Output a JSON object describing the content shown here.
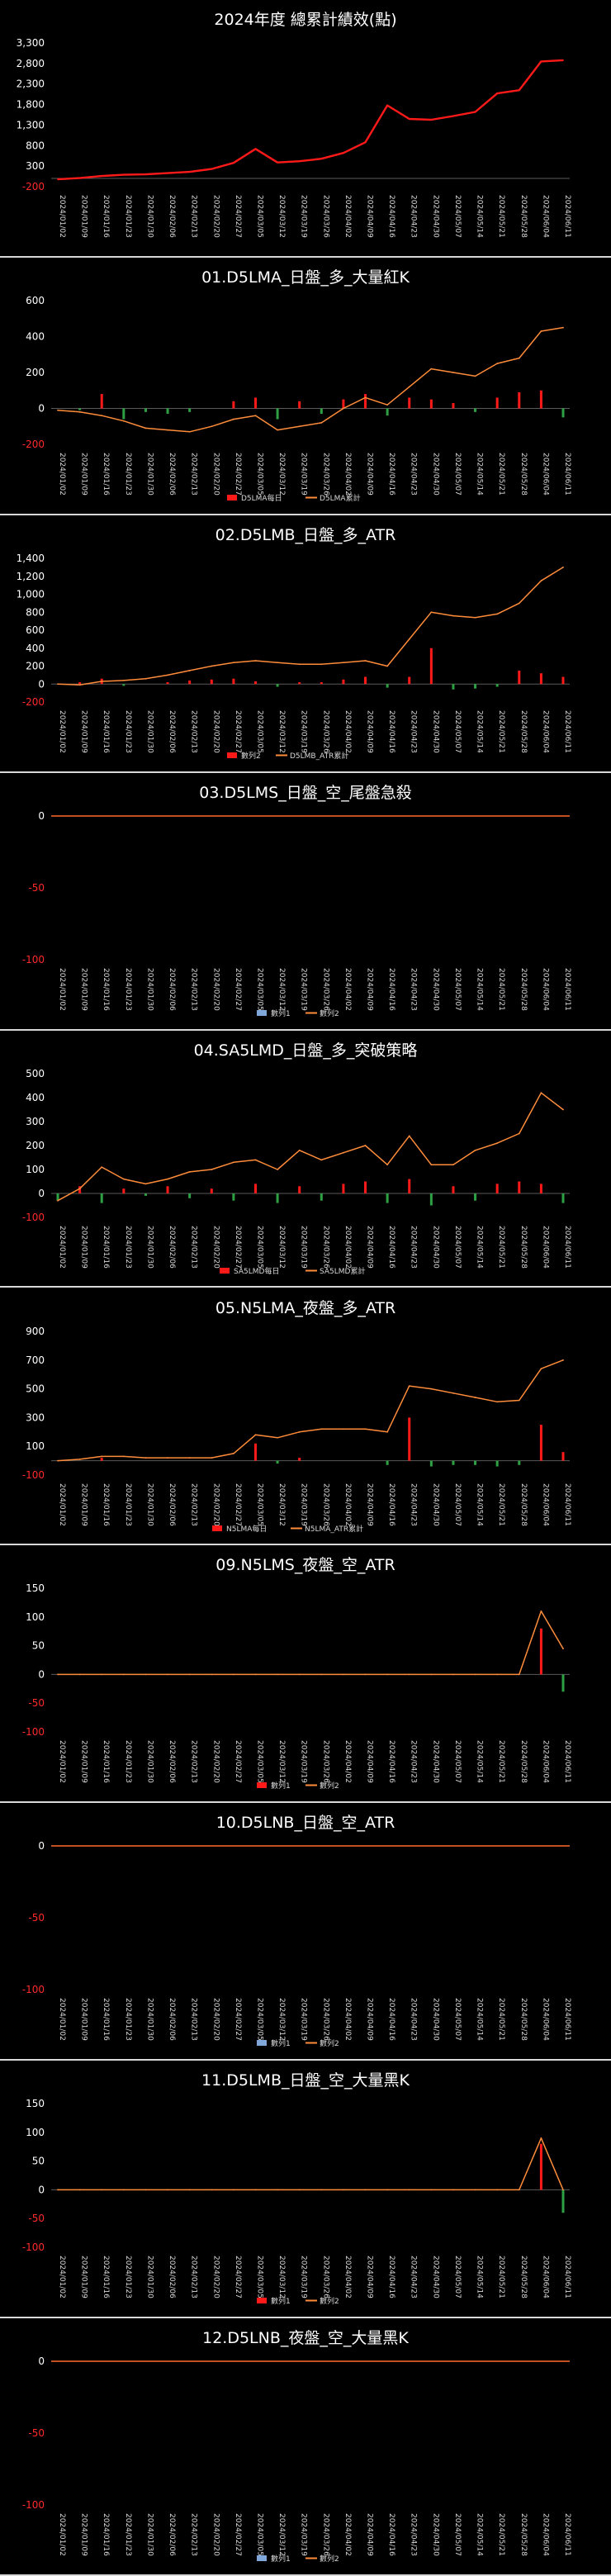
{
  "colors": {
    "background": "#000000",
    "cumulative_main": "#ff1a1a",
    "cumulative": "#ff8c3a",
    "daily_pos": "#ff1a1a",
    "daily_neg": "#2ea043",
    "zero_line": "#ff6a2a",
    "blank_series": "#7fa7d9"
  },
  "chart_data": [
    {
      "type": "line",
      "title": "2024年度 總累計績效(點)",
      "x": [
        "2024/01/02",
        "2024/01/09",
        "2024/01/16",
        "2024/01/23",
        "2024/01/30",
        "2024/02/06",
        "2024/02/13",
        "2024/02/20",
        "2024/02/27",
        "2024/03/05",
        "2024/03/12",
        "2024/03/19",
        "2024/03/26",
        "2024/04/02",
        "2024/04/09",
        "2024/04/16",
        "2024/04/23",
        "2024/04/30",
        "2024/05/07",
        "2024/05/14",
        "2024/05/21",
        "2024/05/28",
        "2024/06/04",
        "2024/06/11"
      ],
      "yticks": [
        "3,300",
        "2,800",
        "2,300",
        "1,800",
        "1,300",
        "800",
        "300",
        "-200"
      ],
      "ylim": [
        -200,
        3300
      ],
      "series": [
        {
          "values": [
            -20,
            10,
            60,
            90,
            100,
            130,
            160,
            230,
            380,
            720,
            390,
            420,
            480,
            620,
            880,
            1780,
            1450,
            1430,
            1520,
            1620,
            2070,
            2150,
            2850,
            2880
          ]
        }
      ],
      "legend": []
    },
    {
      "type": "bar+line",
      "title": "01.D5LMA_日盤_多_大量紅K",
      "x": [
        "2024/01/02",
        "2024/01/09",
        "2024/01/16",
        "2024/01/23",
        "2024/01/30",
        "2024/02/06",
        "2024/02/13",
        "2024/02/20",
        "2024/02/27",
        "2024/03/05",
        "2024/03/12",
        "2024/03/19",
        "2024/03/26",
        "2024/04/02",
        "2024/04/09",
        "2024/04/16",
        "2024/04/23",
        "2024/04/30",
        "2024/05/07",
        "2024/05/14",
        "2024/05/21",
        "2024/05/28",
        "2024/06/04",
        "2024/06/11"
      ],
      "yticks": [
        "600",
        "400",
        "200",
        "0",
        "-200"
      ],
      "ylim": [
        -200,
        600
      ],
      "series": [
        {
          "name": "D5LMA每日",
          "kind": "bar",
          "values": [
            0,
            -10,
            80,
            -60,
            -20,
            -30,
            -20,
            0,
            40,
            60,
            -60,
            40,
            -30,
            50,
            80,
            -40,
            60,
            50,
            30,
            -20,
            60,
            90,
            100,
            -50
          ]
        },
        {
          "name": "D5LMA累計",
          "kind": "line",
          "values": [
            -10,
            -20,
            -40,
            -70,
            -110,
            -120,
            -130,
            -100,
            -60,
            -40,
            -120,
            -100,
            -80,
            0,
            60,
            20,
            120,
            220,
            200,
            180,
            250,
            280,
            430,
            450
          ]
        }
      ],
      "legend": [
        "D5LMA每日",
        "D5LMA累計"
      ]
    },
    {
      "type": "bar+line",
      "title": "02.D5LMB_日盤_多_ATR",
      "x": [
        "2024/01/02",
        "2024/01/09",
        "2024/01/16",
        "2024/01/23",
        "2024/01/30",
        "2024/02/06",
        "2024/02/13",
        "2024/02/20",
        "2024/02/27",
        "2024/03/05",
        "2024/03/12",
        "2024/03/19",
        "2024/03/26",
        "2024/04/02",
        "2024/04/09",
        "2024/04/16",
        "2024/04/23",
        "2024/04/30",
        "2024/05/07",
        "2024/05/14",
        "2024/05/21",
        "2024/05/28",
        "2024/06/04",
        "2024/06/11"
      ],
      "yticks": [
        "1,400",
        "1,200",
        "1,000",
        "800",
        "600",
        "400",
        "200",
        "0",
        "-200"
      ],
      "ylim": [
        -200,
        1400
      ],
      "series": [
        {
          "name": "數列2",
          "kind": "bar",
          "values": [
            0,
            20,
            60,
            -20,
            0,
            20,
            40,
            50,
            60,
            30,
            -30,
            20,
            20,
            50,
            80,
            -40,
            80,
            400,
            -60,
            -50,
            -30,
            150,
            120,
            80
          ]
        },
        {
          "name": "D5LMB_ATR累計",
          "kind": "line",
          "values": [
            0,
            -10,
            30,
            40,
            60,
            100,
            150,
            200,
            240,
            260,
            240,
            220,
            220,
            240,
            260,
            200,
            500,
            800,
            760,
            740,
            780,
            900,
            1150,
            1300
          ]
        }
      ],
      "legend": [
        "數列2",
        "D5LMB_ATR累計"
      ]
    },
    {
      "type": "bar+line",
      "title": "03.D5LMS_日盤_空_尾盤急殺",
      "x": [
        "2024/01/02",
        "2024/01/09",
        "2024/01/16",
        "2024/01/23",
        "2024/01/30",
        "2024/02/06",
        "2024/02/13",
        "2024/02/20",
        "2024/02/27",
        "2024/03/05",
        "2024/03/12",
        "2024/03/19",
        "2024/03/26",
        "2024/04/02",
        "2024/04/09",
        "2024/04/16",
        "2024/04/23",
        "2024/04/30",
        "2024/05/07",
        "2024/05/14",
        "2024/05/21",
        "2024/05/28",
        "2024/06/04",
        "2024/06/11"
      ],
      "yticks": [
        "0",
        "-50",
        "-100"
      ],
      "ylim": [
        -100,
        0
      ],
      "series": [
        {
          "name": "數列1",
          "kind": "bar",
          "values": [
            0,
            0,
            0,
            0,
            0,
            0,
            0,
            0,
            0,
            0,
            0,
            0,
            0,
            0,
            0,
            0,
            0,
            0,
            0,
            0,
            0,
            0,
            0,
            0
          ]
        },
        {
          "name": "數列2",
          "kind": "line",
          "values": [
            0,
            0,
            0,
            0,
            0,
            0,
            0,
            0,
            0,
            0,
            0,
            0,
            0,
            0,
            0,
            0,
            0,
            0,
            0,
            0,
            0,
            0,
            0,
            0
          ]
        }
      ],
      "legend": [
        "數列1",
        "數列2"
      ]
    },
    {
      "type": "bar+line",
      "title": "04.SA5LMD_日盤_多_突破策略",
      "x": [
        "2024/01/02",
        "2024/01/09",
        "2024/01/16",
        "2024/01/23",
        "2024/01/30",
        "2024/02/06",
        "2024/02/13",
        "2024/02/20",
        "2024/02/27",
        "2024/03/05",
        "2024/03/12",
        "2024/03/19",
        "2024/03/26",
        "2024/04/02",
        "2024/04/09",
        "2024/04/16",
        "2024/04/23",
        "2024/04/30",
        "2024/05/07",
        "2024/05/14",
        "2024/05/21",
        "2024/05/28",
        "2024/06/04",
        "2024/06/11"
      ],
      "yticks": [
        "500",
        "400",
        "300",
        "200",
        "100",
        "0",
        "-100"
      ],
      "ylim": [
        -100,
        500
      ],
      "series": [
        {
          "name": "SA5LMD每日",
          "kind": "bar",
          "values": [
            -30,
            30,
            -40,
            20,
            -10,
            30,
            -20,
            20,
            -30,
            40,
            -40,
            30,
            -30,
            40,
            50,
            -40,
            60,
            -50,
            30,
            -30,
            40,
            50,
            40,
            -40
          ]
        },
        {
          "name": "SA5LMD累計",
          "kind": "line",
          "values": [
            -30,
            20,
            110,
            60,
            40,
            60,
            90,
            100,
            130,
            140,
            100,
            180,
            140,
            170,
            200,
            120,
            240,
            120,
            120,
            180,
            210,
            250,
            420,
            350
          ]
        }
      ],
      "legend": [
        "SA5LMD每日",
        "SA5LMD累計"
      ]
    },
    {
      "type": "bar+line",
      "title": "05.N5LMA_夜盤_多_ATR",
      "x": [
        "2024/01/02",
        "2024/01/09",
        "2024/01/16",
        "2024/01/23",
        "2024/01/30",
        "2024/02/06",
        "2024/02/13",
        "2024/02/20",
        "2024/02/27",
        "2024/03/05",
        "2024/03/12",
        "2024/03/19",
        "2024/03/26",
        "2024/04/02",
        "2024/04/09",
        "2024/04/16",
        "2024/04/23",
        "2024/04/30",
        "2024/05/07",
        "2024/05/14",
        "2024/05/21",
        "2024/05/28",
        "2024/06/04",
        "2024/06/11"
      ],
      "yticks": [
        "900",
        "700",
        "500",
        "300",
        "100",
        "-100"
      ],
      "ylim": [
        -100,
        900
      ],
      "series": [
        {
          "name": "N5LMA每日",
          "kind": "bar",
          "values": [
            0,
            0,
            20,
            0,
            0,
            0,
            0,
            0,
            0,
            120,
            -20,
            20,
            0,
            0,
            0,
            -30,
            300,
            -40,
            -30,
            -30,
            -40,
            -30,
            250,
            60
          ]
        },
        {
          "name": "N5LMA_ATR累計",
          "kind": "line",
          "values": [
            0,
            10,
            30,
            30,
            20,
            20,
            20,
            20,
            50,
            180,
            160,
            200,
            220,
            220,
            220,
            200,
            520,
            500,
            470,
            440,
            410,
            420,
            640,
            700
          ]
        }
      ],
      "legend": [
        "N5LMA每日",
        "N5LMA_ATR累計"
      ]
    },
    {
      "type": "bar+line",
      "title": "09.N5LMS_夜盤_空_ATR",
      "x": [
        "2024/01/02",
        "2024/01/09",
        "2024/01/16",
        "2024/01/23",
        "2024/01/30",
        "2024/02/06",
        "2024/02/13",
        "2024/02/20",
        "2024/02/27",
        "2024/03/05",
        "2024/03/12",
        "2024/03/19",
        "2024/03/26",
        "2024/04/02",
        "2024/04/09",
        "2024/04/16",
        "2024/04/23",
        "2024/04/30",
        "2024/05/07",
        "2024/05/14",
        "2024/05/21",
        "2024/05/28",
        "2024/06/04",
        "2024/06/11"
      ],
      "yticks": [
        "150",
        "100",
        "50",
        "0",
        "-50",
        "-100"
      ],
      "ylim": [
        -100,
        150
      ],
      "series": [
        {
          "name": "數列1",
          "kind": "bar",
          "values": [
            0,
            0,
            0,
            0,
            0,
            0,
            0,
            0,
            0,
            0,
            0,
            0,
            0,
            0,
            0,
            0,
            0,
            0,
            0,
            0,
            0,
            0,
            80,
            -30
          ]
        },
        {
          "name": "數列2",
          "kind": "line",
          "values": [
            0,
            0,
            0,
            0,
            0,
            0,
            0,
            0,
            0,
            0,
            0,
            0,
            0,
            0,
            0,
            0,
            0,
            0,
            0,
            0,
            0,
            0,
            110,
            45
          ]
        }
      ],
      "legend": [
        "數列1",
        "數列2"
      ]
    },
    {
      "type": "bar+line",
      "title": "10.D5LNB_日盤_空_ATR",
      "x": [
        "2024/01/02",
        "2024/01/09",
        "2024/01/16",
        "2024/01/23",
        "2024/01/30",
        "2024/02/06",
        "2024/02/13",
        "2024/02/20",
        "2024/02/27",
        "2024/03/05",
        "2024/03/12",
        "2024/03/19",
        "2024/03/26",
        "2024/04/02",
        "2024/04/09",
        "2024/04/16",
        "2024/04/23",
        "2024/04/30",
        "2024/05/07",
        "2024/05/14",
        "2024/05/21",
        "2024/05/28",
        "2024/06/04",
        "2024/06/11"
      ],
      "yticks": [
        "0",
        "-50",
        "-100"
      ],
      "ylim": [
        -100,
        0
      ],
      "series": [
        {
          "name": "數列1",
          "kind": "bar",
          "values": [
            0,
            0,
            0,
            0,
            0,
            0,
            0,
            0,
            0,
            0,
            0,
            0,
            0,
            0,
            0,
            0,
            0,
            0,
            0,
            0,
            0,
            0,
            0,
            0
          ]
        },
        {
          "name": "數列2",
          "kind": "line",
          "values": [
            0,
            0,
            0,
            0,
            0,
            0,
            0,
            0,
            0,
            0,
            0,
            0,
            0,
            0,
            0,
            0,
            0,
            0,
            0,
            0,
            0,
            0,
            0,
            0
          ]
        }
      ],
      "legend": [
        "數列1",
        "數列2"
      ]
    },
    {
      "type": "bar+line",
      "title": "11.D5LMB_日盤_空_大量黑K",
      "x": [
        "2024/01/02",
        "2024/01/09",
        "2024/01/16",
        "2024/01/23",
        "2024/01/30",
        "2024/02/06",
        "2024/02/13",
        "2024/02/20",
        "2024/02/27",
        "2024/03/05",
        "2024/03/12",
        "2024/03/19",
        "2024/03/26",
        "2024/04/02",
        "2024/04/09",
        "2024/04/16",
        "2024/04/23",
        "2024/04/30",
        "2024/05/07",
        "2024/05/14",
        "2024/05/21",
        "2024/05/28",
        "2024/06/04",
        "2024/06/11"
      ],
      "yticks": [
        "150",
        "100",
        "50",
        "0",
        "-50",
        "-100"
      ],
      "ylim": [
        -100,
        150
      ],
      "series": [
        {
          "name": "數列1",
          "kind": "bar",
          "values": [
            0,
            0,
            0,
            0,
            0,
            0,
            0,
            0,
            0,
            0,
            0,
            0,
            0,
            0,
            0,
            0,
            0,
            0,
            0,
            0,
            0,
            0,
            80,
            -40
          ]
        },
        {
          "name": "數列2",
          "kind": "line",
          "values": [
            0,
            0,
            0,
            0,
            0,
            0,
            0,
            0,
            0,
            0,
            0,
            0,
            0,
            0,
            0,
            0,
            0,
            0,
            0,
            0,
            0,
            0,
            90,
            0
          ]
        }
      ],
      "legend": [
        "數列1",
        "數列2"
      ]
    },
    {
      "type": "bar+line",
      "title": "12.D5LNB_夜盤_空_大量黑K",
      "x": [
        "2024/01/02",
        "2024/01/09",
        "2024/01/16",
        "2024/01/23",
        "2024/01/30",
        "2024/02/06",
        "2024/02/13",
        "2024/02/20",
        "2024/02/27",
        "2024/03/05",
        "2024/03/12",
        "2024/03/19",
        "2024/03/26",
        "2024/04/02",
        "2024/04/09",
        "2024/04/16",
        "2024/04/23",
        "2024/04/30",
        "2024/05/07",
        "2024/05/14",
        "2024/05/21",
        "2024/05/28",
        "2024/06/04",
        "2024/06/11"
      ],
      "yticks": [
        "0",
        "-50",
        "-100"
      ],
      "ylim": [
        -100,
        0
      ],
      "series": [
        {
          "name": "數列1",
          "kind": "bar",
          "values": [
            0,
            0,
            0,
            0,
            0,
            0,
            0,
            0,
            0,
            0,
            0,
            0,
            0,
            0,
            0,
            0,
            0,
            0,
            0,
            0,
            0,
            0,
            0,
            0
          ]
        },
        {
          "name": "數列2",
          "kind": "line",
          "values": [
            0,
            0,
            0,
            0,
            0,
            0,
            0,
            0,
            0,
            0,
            0,
            0,
            0,
            0,
            0,
            0,
            0,
            0,
            0,
            0,
            0,
            0,
            0,
            0
          ]
        }
      ],
      "legend": [
        "數列1",
        "數列2"
      ]
    }
  ]
}
